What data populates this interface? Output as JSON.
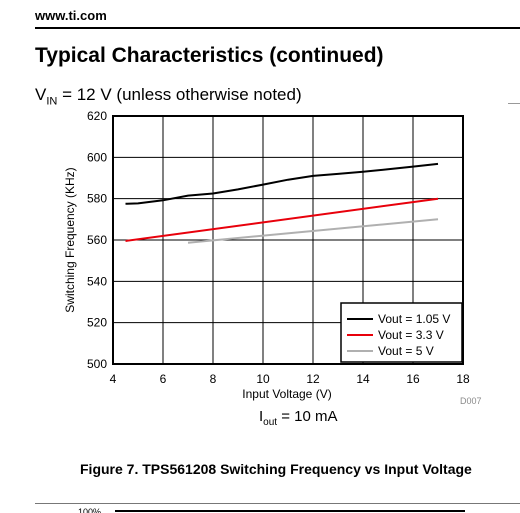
{
  "header": {
    "site": "www.ti.com"
  },
  "section_title": "Typical Characteristics (continued)",
  "condition": {
    "prefix": "V",
    "sub": "IN",
    "text": " = 12 V (unless otherwise noted)"
  },
  "chart_data": {
    "type": "line",
    "title": "",
    "xlabel": "Input Voltage (V)",
    "ylabel": "Switching Frequency (KHz)",
    "xlim": [
      4,
      18
    ],
    "ylim": [
      500,
      620
    ],
    "xticks": [
      "4",
      "6",
      "8",
      "10",
      "12",
      "14",
      "16",
      "18"
    ],
    "yticks": [
      "500",
      "520",
      "540",
      "560",
      "580",
      "600",
      "620"
    ],
    "grid": true,
    "legend_position": "bottom-right",
    "annotation": {
      "prefix": "I",
      "sub": "out",
      "text": " = 10 mA"
    },
    "figure_id": "D007",
    "series": [
      {
        "name": "Vout = 1.05 V",
        "color": "#000000",
        "x": [
          4.5,
          5,
          6,
          7,
          8,
          9,
          10,
          11,
          12,
          13,
          14,
          15,
          16,
          17
        ],
        "y": [
          577.5,
          577.7,
          579.2,
          581.5,
          582.5,
          584.5,
          586.8,
          589.2,
          591.0,
          592.0,
          593.0,
          594.2,
          595.5,
          596.8
        ]
      },
      {
        "name": "Vout = 3.3 V",
        "color": "#e8000b",
        "x": [
          4.5,
          17
        ],
        "y": [
          559.5,
          580.0
        ]
      },
      {
        "name": "Vout = 5 V",
        "color": "#b0b0b0",
        "x": [
          7,
          17
        ],
        "y": [
          558.7,
          570.0
        ]
      }
    ]
  },
  "caption": "Figure 7. TPS561208 Switching Frequency vs Input Voltage",
  "next_figure_label": "100%"
}
